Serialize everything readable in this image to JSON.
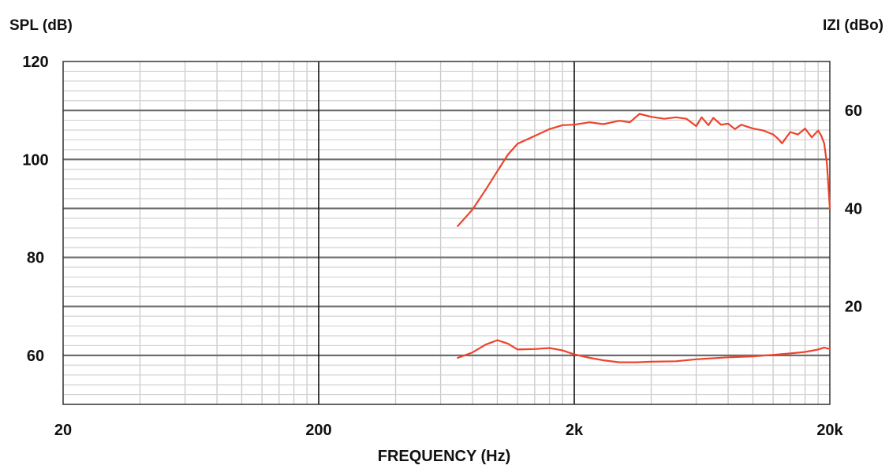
{
  "chart_data": {
    "type": "line",
    "title": "",
    "xlabel": "FREQUENCY (Hz)",
    "ylabel_left": "SPL (dB)",
    "ylabel_right": "IZI (dBo)",
    "x_scale": "log",
    "xlim": [
      20,
      20000
    ],
    "ylim_left": [
      50,
      120
    ],
    "ylim_right": [
      0,
      70
    ],
    "x_ticks": [
      {
        "value": 20,
        "label": "20"
      },
      {
        "value": 200,
        "label": "200"
      },
      {
        "value": 2000,
        "label": "2k"
      },
      {
        "value": 20000,
        "label": "20k"
      }
    ],
    "y_ticks_left": [
      {
        "value": 120,
        "label": "120"
      },
      {
        "value": 100,
        "label": "100"
      },
      {
        "value": 80,
        "label": "80"
      },
      {
        "value": 60,
        "label": "60"
      }
    ],
    "y_ticks_right": [
      {
        "value": 60,
        "label": "60"
      },
      {
        "value": 40,
        "label": "40"
      },
      {
        "value": 20,
        "label": "20"
      }
    ],
    "grid": true,
    "line_color": "#f0422b",
    "series": [
      {
        "axis": "left",
        "x": [
          700,
          800,
          900,
          1000,
          1100,
          1200,
          1400,
          1600,
          1800,
          2000,
          2300,
          2600,
          3000,
          3300,
          3600,
          4000,
          4500,
          5000,
          5500,
          6000,
          6300,
          6700,
          7000,
          7500,
          8000,
          8500,
          9000,
          10000,
          11000,
          12000,
          12500,
          13000,
          14000,
          15000,
          15500,
          16000,
          17000,
          18000,
          18500,
          19000,
          19500,
          20000
        ],
        "y": [
          86.4,
          89.8,
          93.8,
          97.6,
          101,
          103.2,
          104.8,
          106.2,
          107,
          107.1,
          107.6,
          107.2,
          107.9,
          107.6,
          109.3,
          108.7,
          108.3,
          108.6,
          108.3,
          106.8,
          108.6,
          107,
          108.5,
          107.1,
          107.3,
          106.2,
          107.1,
          106.3,
          105.9,
          105.1,
          104.3,
          103.3,
          105.6,
          105.1,
          105.7,
          106.3,
          104.5,
          105.9,
          104.9,
          103.3,
          99,
          90
        ]
      },
      {
        "axis": "right",
        "x": [
          700,
          800,
          900,
          1000,
          1100,
          1200,
          1400,
          1600,
          1800,
          2000,
          2300,
          2600,
          3000,
          3500,
          4000,
          5000,
          6000,
          8000,
          10000,
          12000,
          14000,
          16000,
          18000,
          19000,
          20000
        ],
        "y": [
          9.5,
          10.6,
          12.2,
          13.1,
          12.4,
          11.2,
          11.3,
          11.5,
          11,
          10.2,
          9.5,
          9,
          8.6,
          8.6,
          8.7,
          8.8,
          9.2,
          9.6,
          9.8,
          10.1,
          10.4,
          10.7,
          11.2,
          11.6,
          11.3
        ]
      }
    ]
  }
}
